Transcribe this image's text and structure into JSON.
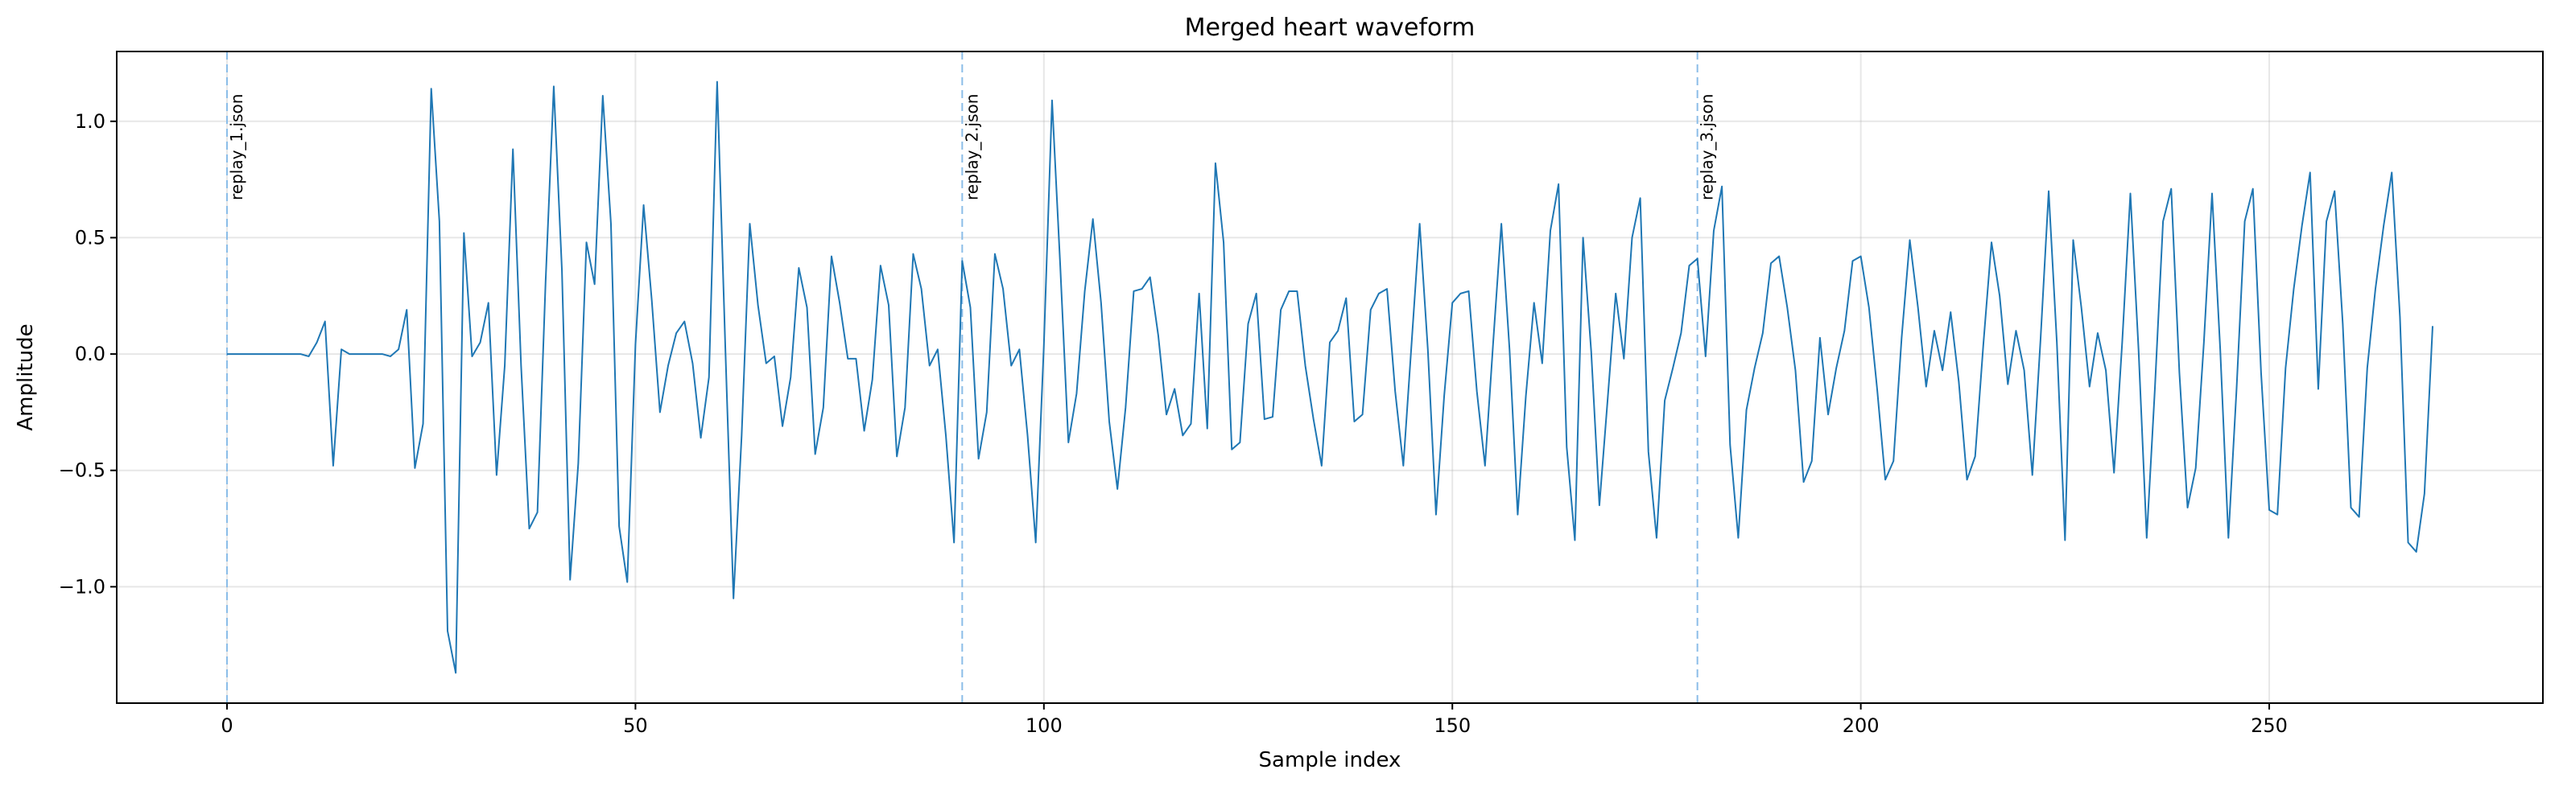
{
  "chart_data": {
    "type": "line",
    "title": "Merged heart waveform",
    "xlabel": "Sample index",
    "ylabel": "Amplitude",
    "xlim": [
      -13.5,
      283.5
    ],
    "ylim": [
      -1.5,
      1.3
    ],
    "xticks": [
      0,
      50,
      100,
      150,
      200,
      250
    ],
    "yticks": [
      -1.0,
      -0.5,
      0.0,
      0.5,
      1.0
    ],
    "ytick_labels": [
      "−1.0",
      "−0.5",
      "0.0",
      "0.5",
      "1.0"
    ],
    "grid": true,
    "colors": {
      "series": "#1f77b4",
      "markers": "#8bbde8"
    },
    "markers": [
      {
        "x": 0,
        "label": "replay_1.json"
      },
      {
        "x": 90,
        "label": "replay_2.json"
      },
      {
        "x": 180,
        "label": "replay_3.json"
      }
    ],
    "series": [
      {
        "x_start": 0,
        "values": [
          0,
          0,
          0,
          0,
          0,
          0,
          0,
          0,
          0,
          0,
          -0.01,
          0.05,
          0.14,
          -0.48,
          0.02,
          0,
          0,
          0,
          0,
          0,
          -0.01,
          0.02,
          0.19,
          -0.49,
          -0.3,
          1.14,
          0.57,
          -1.19,
          -1.37,
          0.52,
          -0.01,
          0.05,
          0.22,
          -0.52,
          -0.05,
          0.88,
          -0.05,
          -0.75,
          -0.68,
          0.31,
          1.15,
          0.36,
          -0.97,
          -0.47,
          0.48,
          0.3,
          1.11,
          0.56,
          -0.74,
          -0.98,
          0.04,
          0.64,
          0.23,
          -0.25,
          -0.05,
          0.09,
          0.14,
          -0.04,
          -0.36,
          -0.1,
          1.17,
          0.03,
          -1.05,
          -0.35,
          0.56,
          0.21,
          -0.04,
          -0.01,
          -0.31,
          -0.1,
          0.37,
          0.2,
          -0.43,
          -0.23,
          0.42,
          0.22,
          -0.02,
          -0.02,
          -0.33,
          -0.11,
          0.38,
          0.21,
          -0.44,
          -0.23,
          0.43,
          0.28,
          -0.05,
          0.02,
          -0.35,
          -0.81,
          0.4,
          0.2,
          -0.45,
          -0.25,
          0.43,
          0.28,
          -0.05,
          0.02,
          -0.35,
          -0.81,
          0.04,
          1.09,
          0.38,
          -0.38,
          -0.17,
          0.27,
          0.58,
          0.22,
          -0.29,
          -0.58,
          -0.23,
          0.27,
          0.28,
          0.33,
          0.08,
          -0.26,
          -0.15,
          -0.35,
          -0.3,
          0.26,
          -0.32,
          0.82,
          0.48,
          -0.41,
          -0.38,
          0.13,
          0.26,
          -0.28,
          -0.27,
          0.19,
          0.27,
          0.27,
          -0.05,
          -0.28,
          -0.48,
          0.05,
          0.1,
          0.24,
          -0.29,
          -0.26,
          0.19,
          0.26,
          0.28,
          -0.16,
          -0.48,
          0.04,
          0.56,
          0.02,
          -0.69,
          -0.18,
          0.22,
          0.26,
          0.27,
          -0.16,
          -0.48,
          0.05,
          0.56,
          0.02,
          -0.69,
          -0.18,
          0.22,
          -0.04,
          0.53,
          0.73,
          -0.4,
          -0.8,
          0.5,
          0.01,
          -0.65,
          -0.2,
          0.26,
          -0.02,
          0.5,
          0.67,
          -0.42,
          -0.79,
          -0.2,
          -0.06,
          0.09,
          0.38,
          0.41,
          -0.01,
          0.53,
          0.72,
          -0.39,
          -0.79,
          -0.24,
          -0.06,
          0.09,
          0.39,
          0.42,
          0.2,
          -0.07,
          -0.55,
          -0.46,
          0.07,
          -0.26,
          -0.06,
          0.1,
          0.4,
          0.42,
          0.2,
          -0.15,
          -0.54,
          -0.46,
          0.07,
          0.49,
          0.2,
          -0.14,
          0.1,
          -0.07,
          0.18,
          -0.12,
          -0.54,
          -0.44,
          0.04,
          0.48,
          0.25,
          -0.13,
          0.1,
          -0.07,
          -0.52,
          0.06,
          0.7,
          0.05,
          -0.8,
          0.49,
          0.2,
          -0.14,
          0.09,
          -0.07,
          -0.51,
          0.05,
          0.69,
          0.02,
          -0.79,
          -0.15,
          0.57,
          0.71,
          -0.08,
          -0.66,
          -0.49,
          0.05,
          0.69,
          0.02,
          -0.79,
          -0.15,
          0.57,
          0.71,
          -0.08,
          -0.67,
          -0.69,
          -0.06,
          0.28,
          0.55,
          0.78,
          -0.15,
          0.57,
          0.7,
          0.13,
          -0.66,
          -0.7,
          -0.06,
          0.28,
          0.55,
          0.78,
          0.16,
          -0.81,
          -0.85,
          -0.6,
          0.12
        ]
      }
    ]
  }
}
